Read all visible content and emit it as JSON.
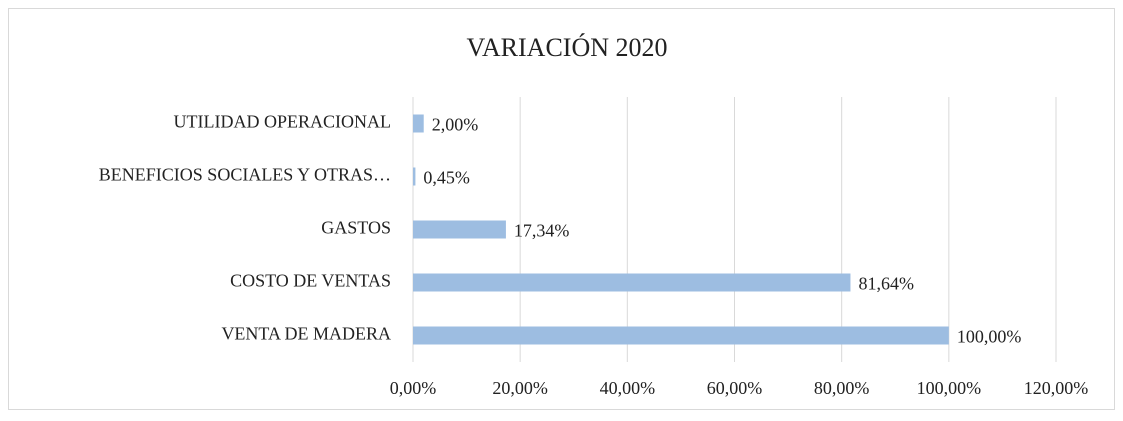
{
  "chart_data": {
    "type": "bar",
    "orientation": "horizontal",
    "title": "VARIACIÓN  2020",
    "categories": [
      "UTILIDAD OPERACIONAL",
      "BENEFICIOS SOCIALES Y OTRAS…",
      "GASTOS",
      "COSTO DE VENTAS",
      "VENTA DE MADERA"
    ],
    "values": [
      2.0,
      0.45,
      17.34,
      81.64,
      100.0
    ],
    "value_labels": [
      "2,00%",
      "0,45%",
      "17,34%",
      "81,64%",
      "100,00%"
    ],
    "color": "#9dbde1",
    "xlim": [
      0,
      120
    ],
    "xticks": [
      {
        "value": 0,
        "label": "0,00%"
      },
      {
        "value": 20,
        "label": "20,00%"
      },
      {
        "value": 40,
        "label": "40,00%"
      },
      {
        "value": 60,
        "label": "60,00%"
      },
      {
        "value": 80,
        "label": "80,00%"
      },
      {
        "value": 100,
        "label": "100,00%"
      },
      {
        "value": 120,
        "label": "120,00%"
      }
    ],
    "grid": true
  }
}
